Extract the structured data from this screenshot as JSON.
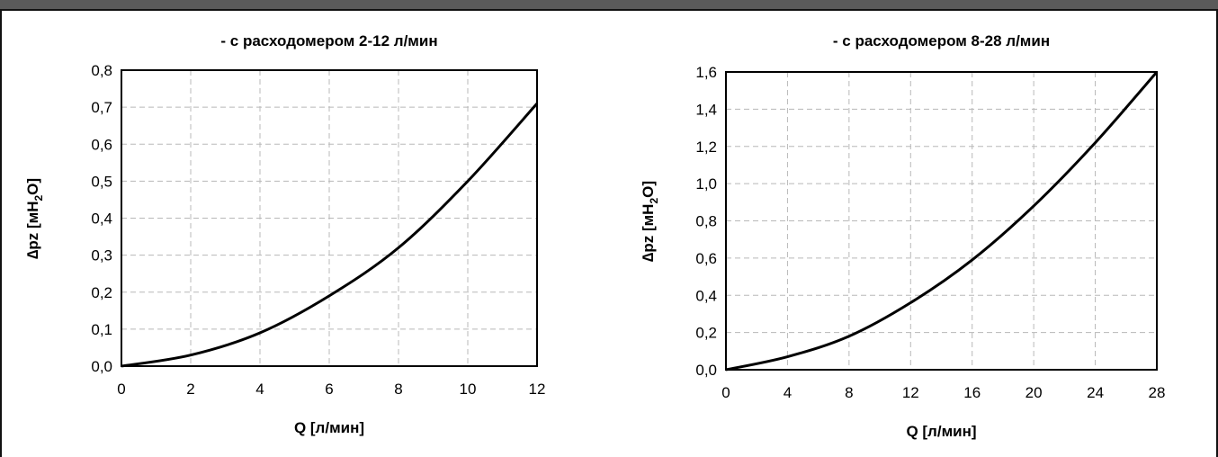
{
  "chart_data": [
    {
      "type": "line",
      "title": "- с расходомером 2-12 л/мин",
      "xlabel": "Q [л/мин]",
      "ylabel": {
        "prefix": "∆pz [мH",
        "sub": "2",
        "suffix": "O]"
      },
      "xlim": [
        0,
        12
      ],
      "ylim": [
        0,
        0.8
      ],
      "x_ticks": [
        0,
        2,
        4,
        6,
        8,
        10,
        12
      ],
      "y_ticks": [
        0.0,
        0.1,
        0.2,
        0.3,
        0.4,
        0.5,
        0.6,
        0.7,
        0.8
      ],
      "x_tick_labels": [
        "0",
        "2",
        "4",
        "6",
        "8",
        "10",
        "12"
      ],
      "y_tick_labels": [
        "0,0",
        "0,1",
        "0,2",
        "0,3",
        "0,4",
        "0,5",
        "0,6",
        "0,7",
        "0,8"
      ],
      "grid": true,
      "series": [
        {
          "x": [
            0,
            2,
            4,
            6,
            8,
            10,
            12
          ],
          "y": [
            0.0,
            0.03,
            0.09,
            0.19,
            0.32,
            0.5,
            0.71
          ]
        }
      ]
    },
    {
      "type": "line",
      "title": "- с расходомером 8-28 л/мин",
      "xlabel": "Q [л/мин]",
      "ylabel": {
        "prefix": "∆pz [мH",
        "sub": "2",
        "suffix": "O]"
      },
      "xlim": [
        0,
        28
      ],
      "ylim": [
        0,
        1.6
      ],
      "x_ticks": [
        0,
        4,
        8,
        12,
        16,
        20,
        24,
        28
      ],
      "y_ticks": [
        0.0,
        0.2,
        0.4,
        0.6,
        0.8,
        1.0,
        1.2,
        1.4,
        1.6
      ],
      "x_tick_labels": [
        "0",
        "4",
        "8",
        "12",
        "16",
        "20",
        "24",
        "28"
      ],
      "y_tick_labels": [
        "0,0",
        "0,2",
        "0,4",
        "0,6",
        "0,8",
        "1,0",
        "1,2",
        "1,4",
        "1,6"
      ],
      "grid": true,
      "series": [
        {
          "x": [
            0,
            4,
            8,
            12,
            16,
            20,
            24,
            28
          ],
          "y": [
            0.0,
            0.07,
            0.18,
            0.36,
            0.59,
            0.88,
            1.22,
            1.6
          ]
        }
      ]
    }
  ]
}
